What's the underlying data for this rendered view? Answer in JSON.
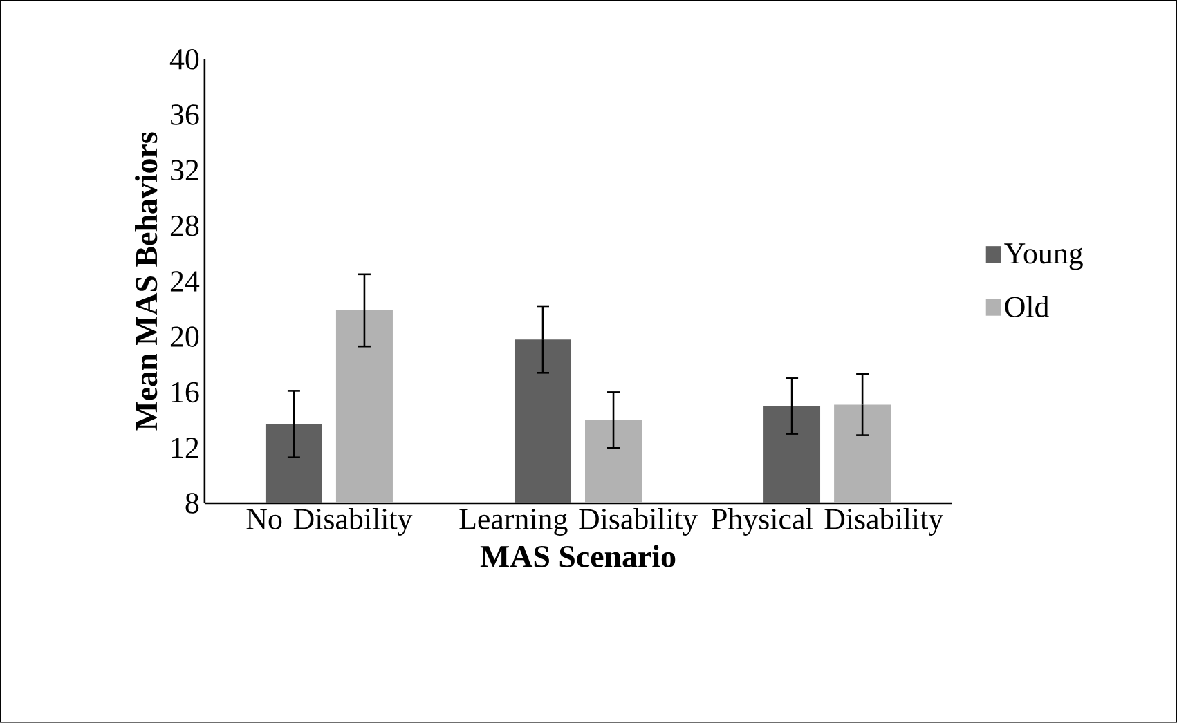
{
  "chart_data": {
    "type": "bar",
    "xlabel": "MAS Scenario",
    "ylabel": "Mean MAS Behaviors",
    "categories": [
      "No Disability",
      "Learning Disability",
      "Physical Disability"
    ],
    "series": [
      {
        "name": "Young",
        "color": "#606060",
        "values": [
          13.7,
          19.8,
          15.0
        ],
        "errors": [
          2.4,
          2.4,
          2.0
        ]
      },
      {
        "name": "Old",
        "color": "#b2b2b2",
        "values": [
          21.9,
          14.0,
          15.1
        ],
        "errors": [
          2.6,
          2.0,
          2.2
        ]
      }
    ],
    "ylim": [
      8,
      40
    ],
    "yticks": [
      8,
      12,
      16,
      20,
      24,
      28,
      32,
      36,
      40
    ],
    "grid": false,
    "legend": "right"
  }
}
